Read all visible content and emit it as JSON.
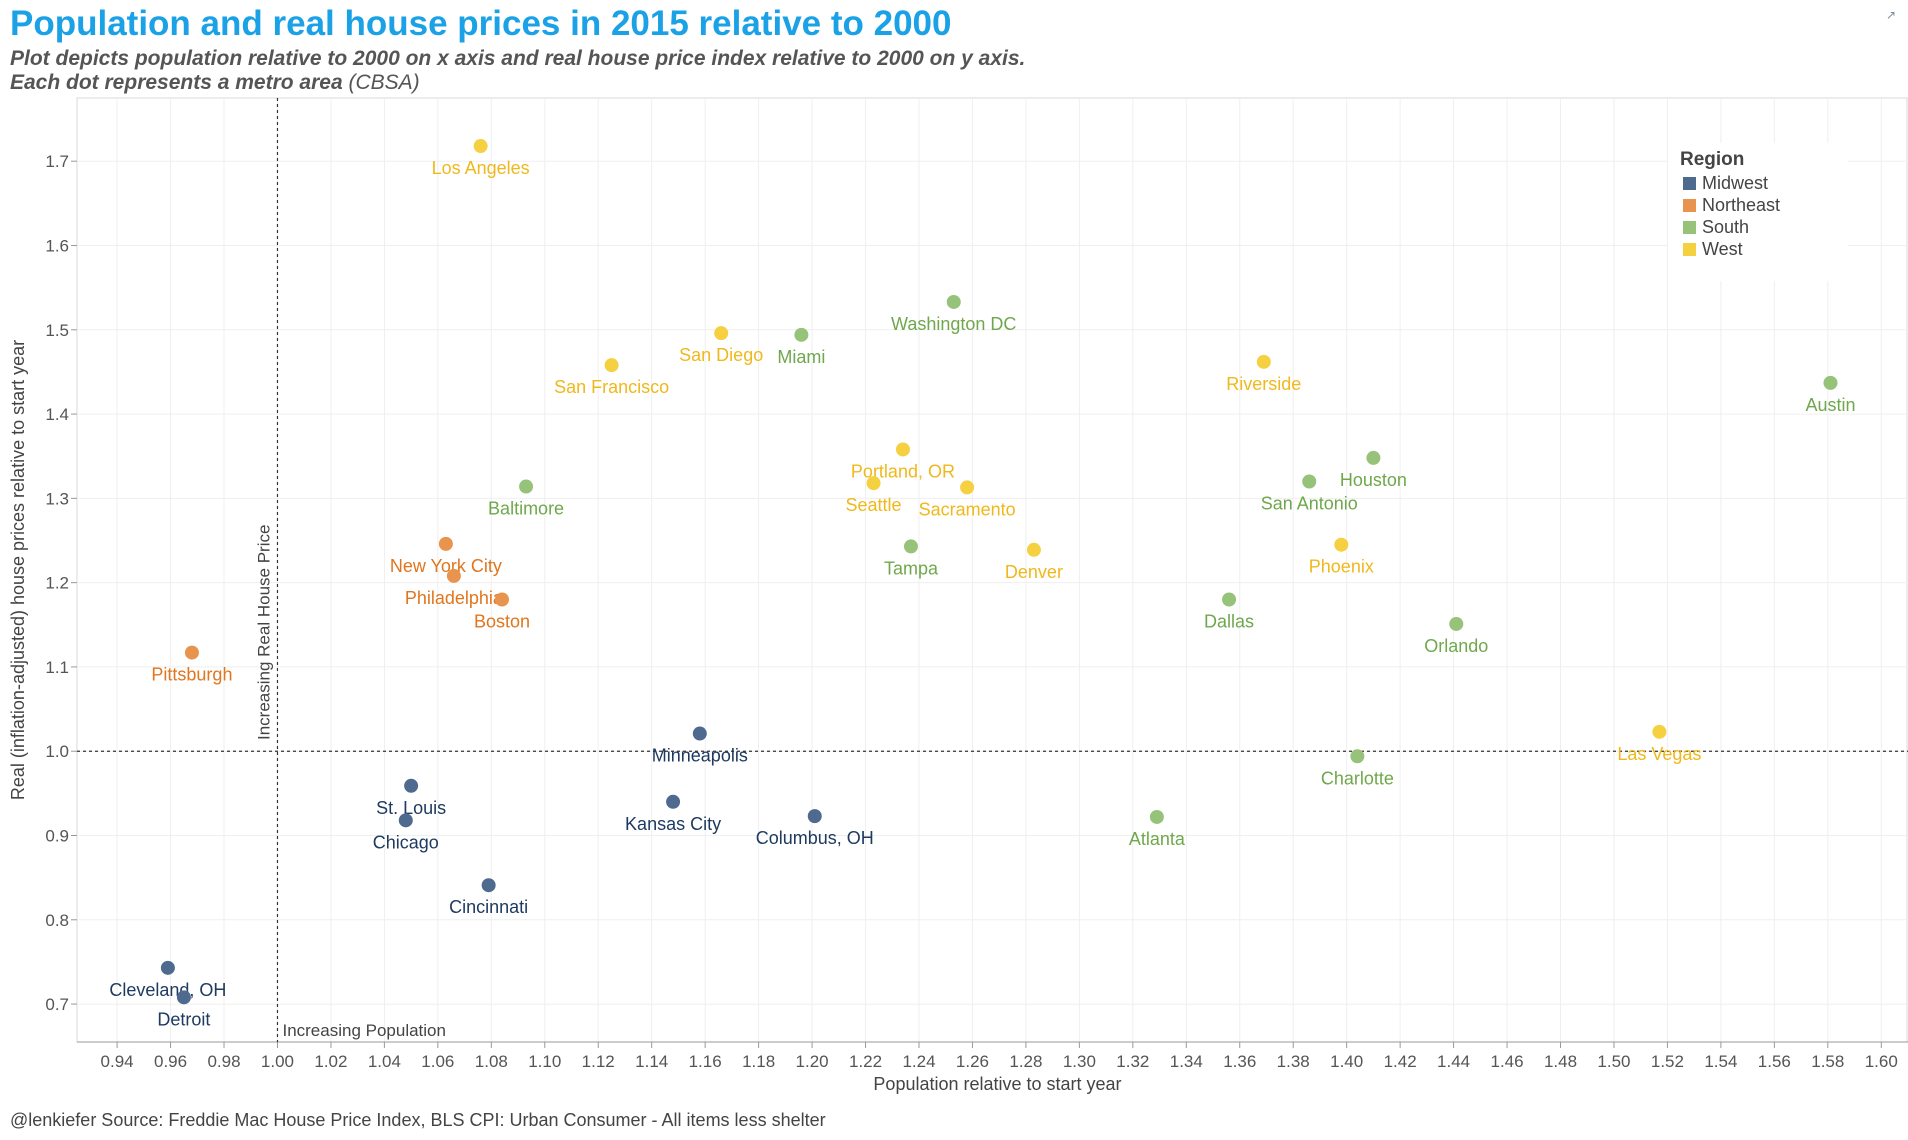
{
  "header": {
    "title": "Population and real house prices in 2015 relative to 2000",
    "subtitle_line1": "Plot depicts population relative to 2000 on x axis and real house price index relative to 2000 on y axis.",
    "subtitle_line2_bold": "Each dot represents a metro area",
    "subtitle_line2_normal": " (CBSA)"
  },
  "footer": {
    "source": "@lenkiefer Source: Freddie Mac House Price Index, BLS CPI: Urban Consumer - All items less shelter"
  },
  "icons": {
    "external": "external-link-icon"
  },
  "chart_data": {
    "type": "scatter",
    "xlabel": "Population relative to start year",
    "ylabel": "Real (inflation-adjusted) house prices relative to start year",
    "xlim": [
      0.925,
      1.61
    ],
    "ylim": [
      0.655,
      1.775
    ],
    "x_ticks": [
      "0.94",
      "0.96",
      "0.98",
      "1.00",
      "1.02",
      "1.04",
      "1.06",
      "1.08",
      "1.10",
      "1.12",
      "1.14",
      "1.16",
      "1.18",
      "1.20",
      "1.22",
      "1.24",
      "1.26",
      "1.28",
      "1.30",
      "1.32",
      "1.34",
      "1.36",
      "1.38",
      "1.40",
      "1.42",
      "1.44",
      "1.46",
      "1.48",
      "1.50",
      "1.52",
      "1.54",
      "1.56",
      "1.58",
      "1.60"
    ],
    "y_ticks": [
      "0.7",
      "0.8",
      "0.9",
      "1.0",
      "1.1",
      "1.2",
      "1.3",
      "1.4",
      "1.5",
      "1.6",
      "1.7"
    ],
    "grid": true,
    "reference_lines": [
      {
        "axis": "x",
        "value": 1.0,
        "label": "Increasing Real House Price"
      },
      {
        "axis": "y",
        "value": 1.0,
        "label": "Increasing Population"
      }
    ],
    "legend": {
      "title": "Region",
      "placement": "top-right",
      "entries": [
        {
          "name": "Midwest",
          "color": "#4e6a8f",
          "label_color": "#1f3a60"
        },
        {
          "name": "Northeast",
          "color": "#e8944e",
          "label_color": "#e0761e"
        },
        {
          "name": "South",
          "color": "#96c27a",
          "label_color": "#6fa84c"
        },
        {
          "name": "West",
          "color": "#f5d040",
          "label_color": "#f0b81a"
        }
      ]
    },
    "points": [
      {
        "name": "Los Angeles",
        "region": "West",
        "x": 1.076,
        "y": 1.718,
        "label_pos": "below"
      },
      {
        "name": "Washington DC",
        "region": "South",
        "x": 1.253,
        "y": 1.533,
        "label_pos": "below"
      },
      {
        "name": "San Diego",
        "region": "West",
        "x": 1.166,
        "y": 1.496,
        "label_pos": "below"
      },
      {
        "name": "Miami",
        "region": "South",
        "x": 1.196,
        "y": 1.494,
        "label_pos": "below"
      },
      {
        "name": "San Francisco",
        "region": "West",
        "x": 1.125,
        "y": 1.458,
        "label_pos": "below"
      },
      {
        "name": "Riverside",
        "region": "West",
        "x": 1.369,
        "y": 1.462,
        "label_pos": "below"
      },
      {
        "name": "Austin",
        "region": "South",
        "x": 1.581,
        "y": 1.437,
        "label_pos": "below"
      },
      {
        "name": "Portland, OR",
        "region": "West",
        "x": 1.234,
        "y": 1.358,
        "label_pos": "below"
      },
      {
        "name": "Seattle",
        "region": "West",
        "x": 1.223,
        "y": 1.318,
        "label_pos": "below"
      },
      {
        "name": "Sacramento",
        "region": "West",
        "x": 1.258,
        "y": 1.313,
        "label_pos": "below"
      },
      {
        "name": "Houston",
        "region": "South",
        "x": 1.41,
        "y": 1.348,
        "label_pos": "below"
      },
      {
        "name": "San Antonio",
        "region": "South",
        "x": 1.386,
        "y": 1.32,
        "label_pos": "below"
      },
      {
        "name": "Baltimore",
        "region": "South",
        "x": 1.093,
        "y": 1.314,
        "label_pos": "below"
      },
      {
        "name": "New York City",
        "region": "Northeast",
        "x": 1.063,
        "y": 1.246,
        "label_pos": "below"
      },
      {
        "name": "Tampa",
        "region": "South",
        "x": 1.237,
        "y": 1.243,
        "label_pos": "below"
      },
      {
        "name": "Denver",
        "region": "West",
        "x": 1.283,
        "y": 1.239,
        "label_pos": "below"
      },
      {
        "name": "Phoenix",
        "region": "West",
        "x": 1.398,
        "y": 1.245,
        "label_pos": "below"
      },
      {
        "name": "Philadelphia",
        "region": "Northeast",
        "x": 1.066,
        "y": 1.208,
        "label_pos": "below"
      },
      {
        "name": "Boston",
        "region": "Northeast",
        "x": 1.084,
        "y": 1.18,
        "label_pos": "below"
      },
      {
        "name": "Dallas",
        "region": "South",
        "x": 1.356,
        "y": 1.18,
        "label_pos": "below"
      },
      {
        "name": "Orlando",
        "region": "South",
        "x": 1.441,
        "y": 1.151,
        "label_pos": "below"
      },
      {
        "name": "Pittsburgh",
        "region": "Northeast",
        "x": 0.968,
        "y": 1.117,
        "label_pos": "below"
      },
      {
        "name": "Minneapolis",
        "region": "Midwest",
        "x": 1.158,
        "y": 1.021,
        "label_pos": "below"
      },
      {
        "name": "Las Vegas",
        "region": "West",
        "x": 1.517,
        "y": 1.023,
        "label_pos": "below"
      },
      {
        "name": "Charlotte",
        "region": "South",
        "x": 1.404,
        "y": 0.994,
        "label_pos": "below"
      },
      {
        "name": "St. Louis",
        "region": "Midwest",
        "x": 1.05,
        "y": 0.959,
        "label_pos": "below"
      },
      {
        "name": "Chicago",
        "region": "Midwest",
        "x": 1.048,
        "y": 0.918,
        "label_pos": "below"
      },
      {
        "name": "Kansas City",
        "region": "Midwest",
        "x": 1.148,
        "y": 0.94,
        "label_pos": "below"
      },
      {
        "name": "Columbus, OH",
        "region": "Midwest",
        "x": 1.201,
        "y": 0.923,
        "label_pos": "below"
      },
      {
        "name": "Atlanta",
        "region": "South",
        "x": 1.329,
        "y": 0.922,
        "label_pos": "below"
      },
      {
        "name": "Cincinnati",
        "region": "Midwest",
        "x": 1.079,
        "y": 0.841,
        "label_pos": "below"
      },
      {
        "name": "Cleveland, OH",
        "region": "Midwest",
        "x": 0.959,
        "y": 0.743,
        "label_pos": "below"
      },
      {
        "name": "Detroit",
        "region": "Midwest",
        "x": 0.965,
        "y": 0.708,
        "label_pos": "below"
      }
    ]
  }
}
